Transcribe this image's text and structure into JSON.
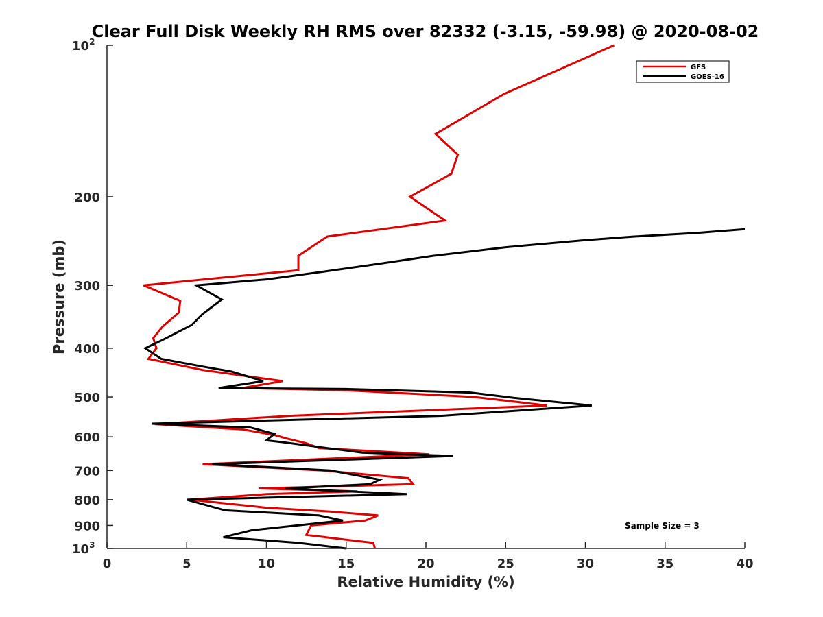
{
  "chart_data": {
    "type": "line",
    "title": "Clear Full Disk Weekly RH RMS over 82332 (-3.15, -59.98) @ 2020-08-02",
    "xlabel": "Relative Humidity (%)",
    "ylabel": "Pressure (mb)",
    "xlim": [
      0,
      40
    ],
    "ylim": [
      100,
      1000
    ],
    "y_scale": "log",
    "y_reversed": true,
    "grid": false,
    "legend_position": "top-right",
    "x_ticks": [
      "0",
      "5",
      "10",
      "15",
      "20",
      "25",
      "30",
      "35",
      "40"
    ],
    "y_ticks": [
      {
        "value": 100,
        "base": "10",
        "exp": "2"
      },
      {
        "value": 200,
        "base": "200",
        "exp": ""
      },
      {
        "value": 300,
        "base": "300",
        "exp": ""
      },
      {
        "value": 400,
        "base": "400",
        "exp": ""
      },
      {
        "value": 500,
        "base": "500",
        "exp": ""
      },
      {
        "value": 600,
        "base": "600",
        "exp": ""
      },
      {
        "value": 700,
        "base": "700",
        "exp": ""
      },
      {
        "value": 800,
        "base": "800",
        "exp": ""
      },
      {
        "value": 900,
        "base": "900",
        "exp": ""
      },
      {
        "value": 1000,
        "base": "10",
        "exp": "3"
      }
    ],
    "series": [
      {
        "name": "GFS",
        "color": "#e00000",
        "points": [
          [
            31.8,
            100
          ],
          [
            24.9,
            125
          ],
          [
            20.6,
            150
          ],
          [
            22.0,
            165
          ],
          [
            21.6,
            180
          ],
          [
            19.0,
            200
          ],
          [
            21.2,
            223
          ],
          [
            13.8,
            240
          ],
          [
            12.0,
            262
          ],
          [
            12.0,
            280
          ],
          [
            2.3,
            300
          ],
          [
            4.6,
            322
          ],
          [
            4.5,
            340
          ],
          [
            3.5,
            362
          ],
          [
            2.9,
            382
          ],
          [
            3.1,
            400
          ],
          [
            2.6,
            420
          ],
          [
            6.0,
            442
          ],
          [
            11.0,
            465
          ],
          [
            8.5,
            480
          ],
          [
            15.0,
            485
          ],
          [
            23.0,
            500
          ],
          [
            27.6,
            520
          ],
          [
            11.5,
            545
          ],
          [
            3.0,
            566
          ],
          [
            8.5,
            580
          ],
          [
            10.5,
            595
          ],
          [
            11.3,
            605
          ],
          [
            12.5,
            618
          ],
          [
            13.3,
            632
          ],
          [
            16.5,
            640
          ],
          [
            20.2,
            650
          ],
          [
            6.0,
            680
          ],
          [
            13.5,
            700
          ],
          [
            18.9,
            725
          ],
          [
            19.2,
            745
          ],
          [
            9.5,
            760
          ],
          [
            15.7,
            770
          ],
          [
            10.0,
            780
          ],
          [
            5.2,
            800
          ],
          [
            10.0,
            830
          ],
          [
            14.0,
            845
          ],
          [
            17.0,
            860
          ],
          [
            16.2,
            880
          ],
          [
            12.8,
            900
          ],
          [
            12.5,
            940
          ],
          [
            16.7,
            975
          ],
          [
            16.8,
            1000
          ]
        ]
      },
      {
        "name": "GOES-16",
        "color": "#000000",
        "points": [
          [
            40.0,
            232
          ],
          [
            37.0,
            236
          ],
          [
            33.0,
            240
          ],
          [
            30.0,
            244
          ],
          [
            25.0,
            252
          ],
          [
            20.5,
            262
          ],
          [
            17.0,
            272
          ],
          [
            13.5,
            282
          ],
          [
            10.0,
            292
          ],
          [
            5.6,
            300
          ],
          [
            7.2,
            320
          ],
          [
            6.0,
            342
          ],
          [
            5.3,
            360
          ],
          [
            3.5,
            385
          ],
          [
            2.4,
            400
          ],
          [
            3.4,
            420
          ],
          [
            6.0,
            435
          ],
          [
            7.8,
            445
          ],
          [
            9.8,
            465
          ],
          [
            7.0,
            480
          ],
          [
            15.0,
            482
          ],
          [
            22.8,
            490
          ],
          [
            25.5,
            502
          ],
          [
            30.4,
            520
          ],
          [
            21.0,
            545
          ],
          [
            2.8,
            565
          ],
          [
            9.0,
            575
          ],
          [
            10.5,
            592
          ],
          [
            10.0,
            610
          ],
          [
            11.0,
            615
          ],
          [
            13.5,
            630
          ],
          [
            16.0,
            645
          ],
          [
            21.7,
            655
          ],
          [
            6.6,
            680
          ],
          [
            14.0,
            700
          ],
          [
            17.1,
            730
          ],
          [
            16.5,
            745
          ],
          [
            11.2,
            760
          ],
          [
            18.8,
            780
          ],
          [
            5.0,
            800
          ],
          [
            7.4,
            840
          ],
          [
            13.3,
            860
          ],
          [
            14.8,
            880
          ],
          [
            9.1,
            920
          ],
          [
            7.3,
            950
          ],
          [
            12.0,
            975
          ],
          [
            15.0,
            1000
          ]
        ]
      }
    ],
    "annotations": [
      {
        "text": "Sample Size = 3",
        "x": 32.5,
        "y": 920
      }
    ]
  }
}
